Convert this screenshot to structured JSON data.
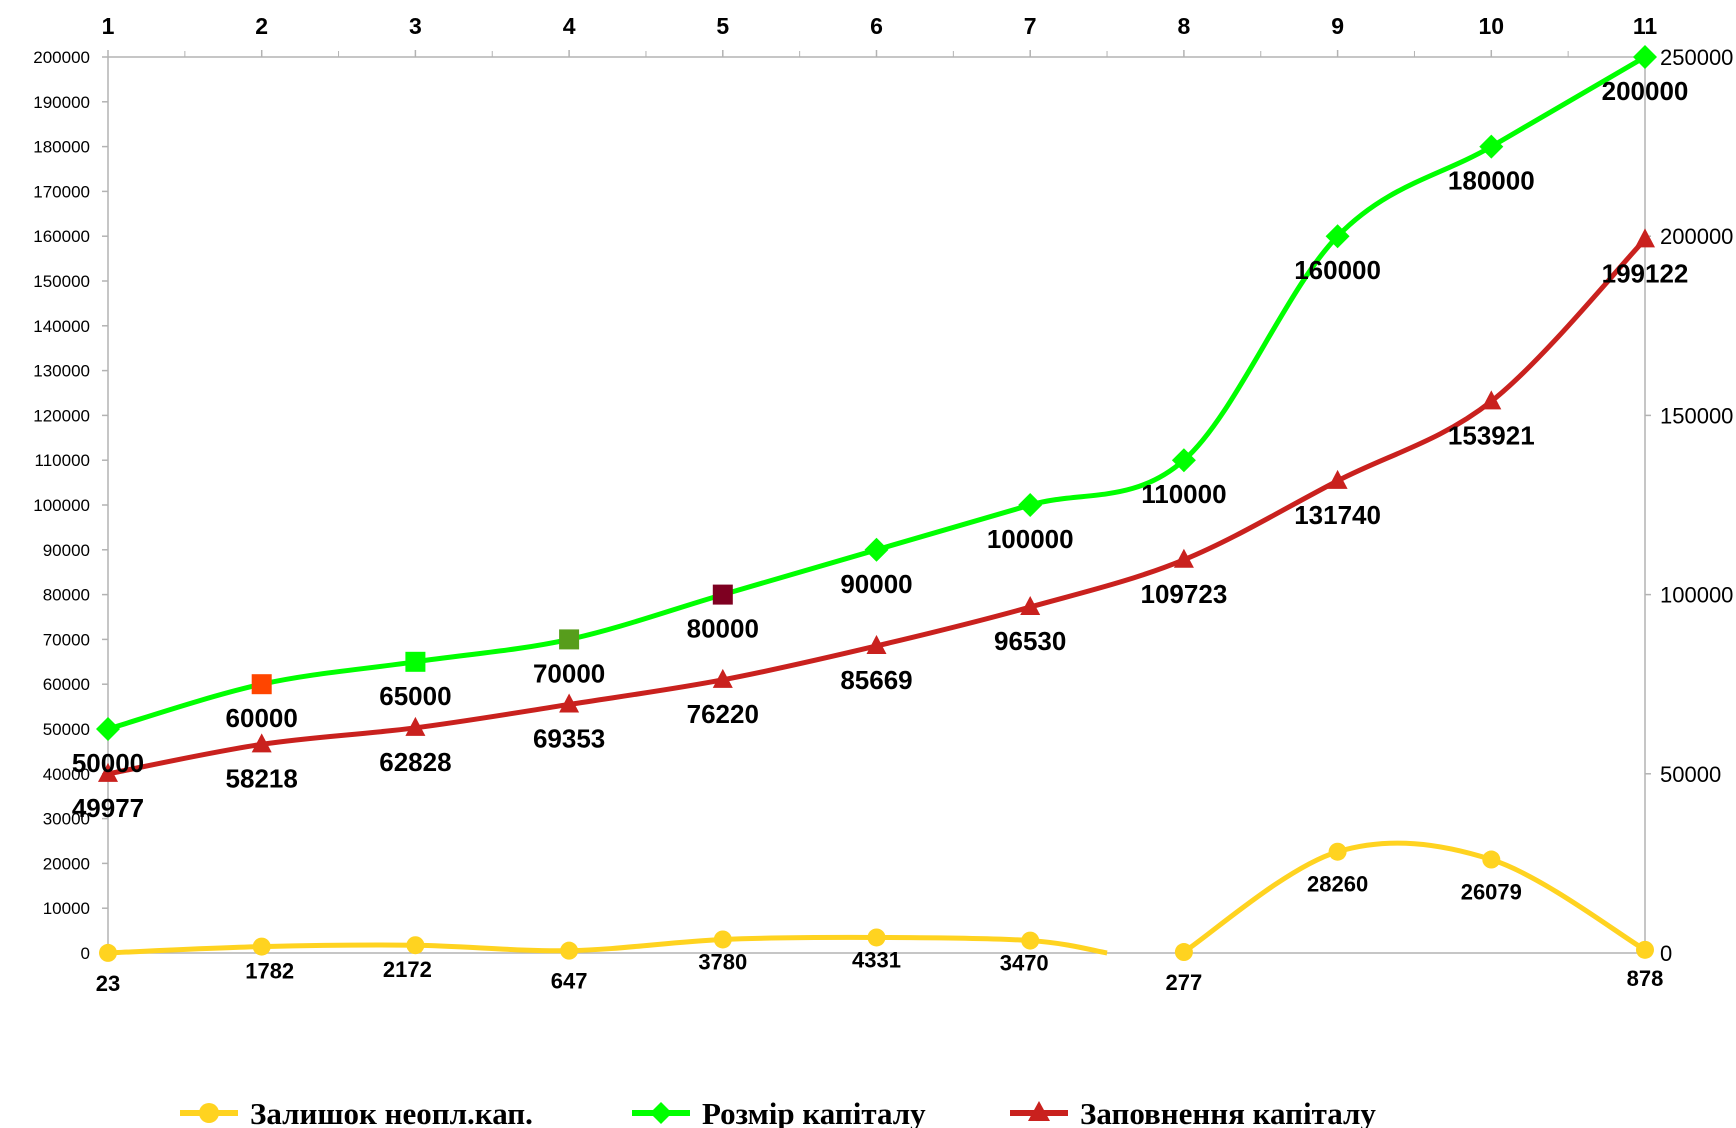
{
  "chart_data": {
    "type": "line",
    "x": [
      1,
      2,
      3,
      4,
      5,
      6,
      7,
      8,
      9,
      10,
      11
    ],
    "x_tick_labels": [
      "1",
      "2",
      "3",
      "4",
      "5",
      "6",
      "7",
      "8",
      "9",
      "10",
      "11"
    ],
    "y_left": {
      "range": [
        0,
        200000
      ],
      "step": 10000,
      "ticks": [
        "0",
        "10000",
        "20000",
        "30000",
        "40000",
        "50000",
        "60000",
        "70000",
        "80000",
        "90000",
        "100000",
        "110000",
        "120000",
        "130000",
        "140000",
        "150000",
        "160000",
        "170000",
        "180000",
        "190000",
        "200000"
      ]
    },
    "y_right": {
      "range": [
        0,
        250000
      ],
      "ticks": [
        "0",
        "50000",
        "100000",
        "150000",
        "200000",
        "250000"
      ]
    },
    "legend_position": "bottom",
    "grid": false,
    "series": [
      {
        "name": "Залишок неопл.кап.",
        "color": "#ffd320",
        "marker": "circle",
        "axis": "right",
        "values": [
          23,
          1782,
          2172,
          647,
          3780,
          4331,
          3470,
          null,
          277,
          28260,
          26079,
          878
        ],
        "x": [
          1,
          2,
          3,
          4,
          5,
          6,
          7,
          7.5,
          8,
          9,
          10,
          11
        ],
        "labels": [
          "23",
          "1782",
          "2172",
          "647",
          "3780",
          "4331",
          "3470",
          "",
          "277",
          "28260",
          "26079",
          "878"
        ]
      },
      {
        "name": "Розмір капіталу",
        "color": "#00ff00",
        "marker": "diamond",
        "axis": "left",
        "values": [
          50000,
          60000,
          65000,
          70000,
          80000,
          90000,
          100000,
          110000,
          160000,
          180000,
          200000
        ],
        "labels": [
          "50000",
          "60000",
          "65000",
          "70000",
          "80000",
          "90000",
          "100000",
          "110000",
          "160000",
          "180000",
          "200000"
        ],
        "special_marker_colors": {
          "2": "#ff4500",
          "3": "#00ff00",
          "4": "#579d1c",
          "5": "#7e0021"
        }
      },
      {
        "name": "Заповнення капіталу",
        "color": "#c9211e",
        "marker": "triangle",
        "axis": "right",
        "values": [
          49977,
          58218,
          62828,
          69353,
          76220,
          85669,
          96530,
          109723,
          131740,
          153921,
          199122
        ],
        "labels": [
          "49977",
          "58218",
          "62828",
          "69353",
          "76220",
          "85669",
          "96530",
          "109723",
          "131740",
          "153921",
          "199122"
        ]
      }
    ]
  }
}
